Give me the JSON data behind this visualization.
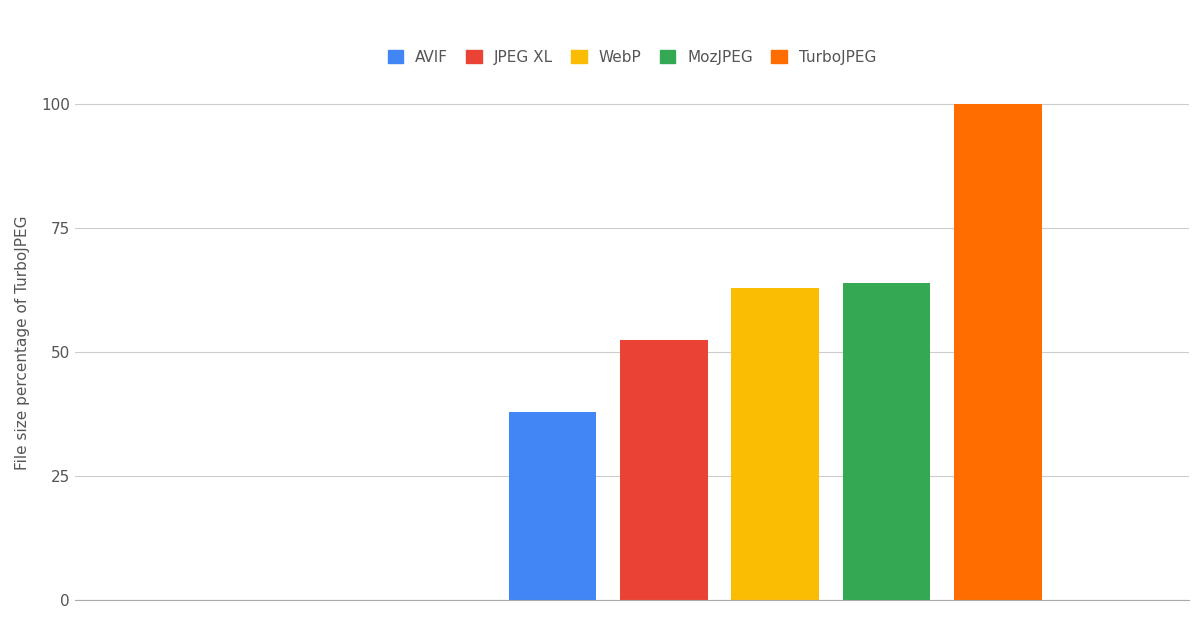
{
  "categories": [
    "AVIF",
    "JPEG XL",
    "WebP",
    "MozJPEG",
    "TurboJPEG"
  ],
  "values": [
    38.0,
    52.5,
    63.0,
    64.0,
    100.0
  ],
  "bar_colors": [
    "#4285F4",
    "#EA4335",
    "#FBBC04",
    "#34A853",
    "#FF6D00"
  ],
  "ylabel": "File size percentage of TurboJPEG",
  "ylim": [
    0,
    104
  ],
  "yticks": [
    0,
    25,
    50,
    75,
    100
  ],
  "legend_labels": [
    "AVIF",
    "JPEG XL",
    "WebP",
    "MozJPEG",
    "TurboJPEG"
  ],
  "legend_colors": [
    "#4285F4",
    "#EA4335",
    "#FBBC04",
    "#34A853",
    "#FF6D00"
  ],
  "background_color": "#ffffff",
  "grid_color": "#cccccc",
  "bar_width": 0.55,
  "label_fontsize": 11,
  "tick_fontsize": 11,
  "legend_fontsize": 11,
  "xlim": [
    -1.5,
    5.5
  ]
}
